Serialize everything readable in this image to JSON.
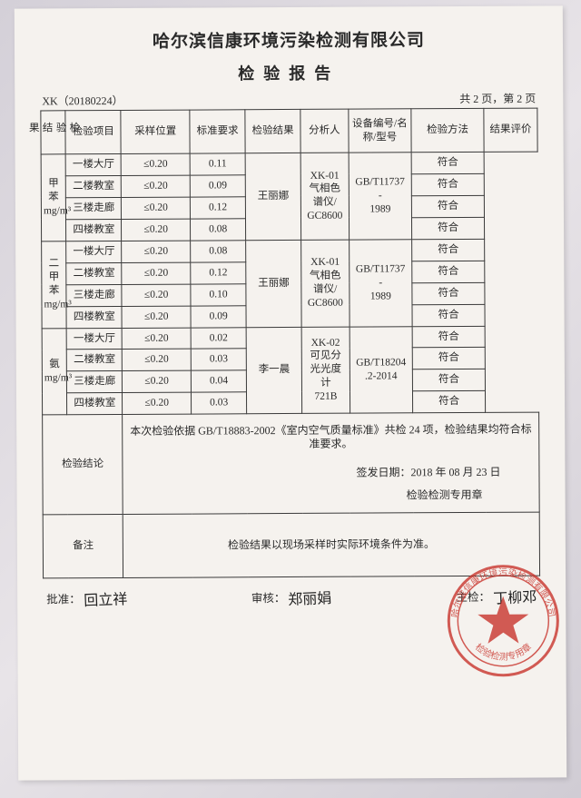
{
  "header": {
    "company": "哈尔滨信康环境污染检测有限公司",
    "report_title": "检验报告",
    "doc_no": "XK（20180224）",
    "page_info": "共 2 页，第 2 页"
  },
  "columns": {
    "side": "检验结果",
    "c1": "检验项目",
    "c2": "采样位置",
    "c3": "标准要求",
    "c4": "检验结果",
    "c5": "分析人",
    "c6": "设备编号/名称/型号",
    "c7": "检验方法",
    "c8": "结果评价"
  },
  "groups": [
    {
      "item": "甲苯\nmg/m³",
      "analyst": "王丽娜",
      "device": "XK-01\n气相色\n谱仪/\nGC8600",
      "method": "GB/T11737\n-\n1989",
      "rows": [
        {
          "loc": "一楼大厅",
          "std": "≤0.20",
          "val": "0.11",
          "eval": "符合"
        },
        {
          "loc": "二楼教室",
          "std": "≤0.20",
          "val": "0.09",
          "eval": "符合"
        },
        {
          "loc": "三楼走廊",
          "std": "≤0.20",
          "val": "0.12",
          "eval": "符合"
        },
        {
          "loc": "四楼教室",
          "std": "≤0.20",
          "val": "0.08",
          "eval": "符合"
        }
      ]
    },
    {
      "item": "二甲苯\nmg/m³",
      "analyst": "王丽娜",
      "device": "XK-01\n气相色\n谱仪/\nGC8600",
      "method": "GB/T11737\n-\n1989",
      "rows": [
        {
          "loc": "一楼大厅",
          "std": "≤0.20",
          "val": "0.08",
          "eval": "符合"
        },
        {
          "loc": "二楼教室",
          "std": "≤0.20",
          "val": "0.12",
          "eval": "符合"
        },
        {
          "loc": "三楼走廊",
          "std": "≤0.20",
          "val": "0.10",
          "eval": "符合"
        },
        {
          "loc": "四楼教室",
          "std": "≤0.20",
          "val": "0.09",
          "eval": "符合"
        }
      ]
    },
    {
      "item": "氨\nmg/m³",
      "analyst": "李一晨",
      "device": "XK-02\n可见分\n光光度\n计\n721B",
      "method": "GB/T18204\n.2-2014",
      "rows": [
        {
          "loc": "一楼大厅",
          "std": "≤0.20",
          "val": "0.02",
          "eval": "符合"
        },
        {
          "loc": "二楼教室",
          "std": "≤0.20",
          "val": "0.03",
          "eval": "符合"
        },
        {
          "loc": "三楼走廊",
          "std": "≤0.20",
          "val": "0.04",
          "eval": "符合"
        },
        {
          "loc": "四楼教室",
          "std": "≤0.20",
          "val": "0.03",
          "eval": "符合"
        }
      ]
    }
  ],
  "conclusion": {
    "label": "检验结论",
    "text": "本次检验依据 GB/T18883-2002《室内空气质量标准》共检 24 项，检验结果均符合标准要求。",
    "issue": "签发日期：2018 年 08 月 23 日",
    "seal_label": "检验检测专用章"
  },
  "remark": {
    "label": "备注",
    "text": "检验结果以现场采样时实际环境条件为准。"
  },
  "signatures": {
    "approve_label": "批准：",
    "approve_name": "回立祥",
    "review_label": "审核：",
    "review_name": "郑丽娟",
    "chief_label": "主检：",
    "chief_name": "丁柳邓"
  },
  "stamp": {
    "outer_text": "哈尔滨信康环境污染检测有限公司",
    "inner_text": "检验检测专用章",
    "color": "#c83028"
  },
  "style": {
    "border_color": "#3a3a3a",
    "paper_bg": "#f5f2ee"
  }
}
